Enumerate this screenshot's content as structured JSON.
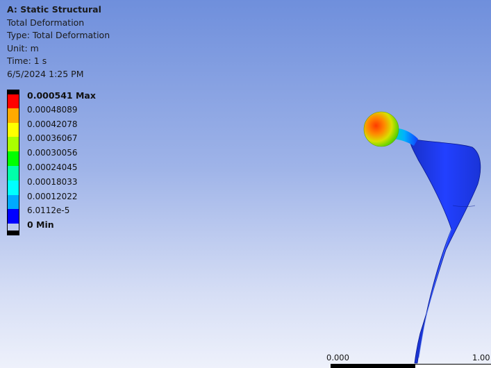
{
  "info": {
    "title": "A: Static Structural",
    "result": "Total Deformation",
    "type": "Type: Total Deformation",
    "unit": "Unit: m",
    "time": "Time: 1 s",
    "date": "6/5/2024 1:25 PM"
  },
  "legend": {
    "labels": [
      "0.000541 Max",
      "0.00048089",
      "0.00042078",
      "0.00036067",
      "0.00030056",
      "0.00024045",
      "0.00018033",
      "0.00012022",
      "6.0112e-5",
      "0 Min"
    ],
    "colors": [
      "#ff0000",
      "#ffaa00",
      "#ffff00",
      "#aaff00",
      "#00ff00",
      "#00ffaa",
      "#00ffff",
      "#00aaff",
      "#0000ff"
    ]
  },
  "scale": {
    "start": "0.000",
    "end": "1.00"
  },
  "colors": {
    "background_top": "#6f8fdc",
    "background_bottom": "#eef1fb",
    "model_min": "#0000ff"
  }
}
